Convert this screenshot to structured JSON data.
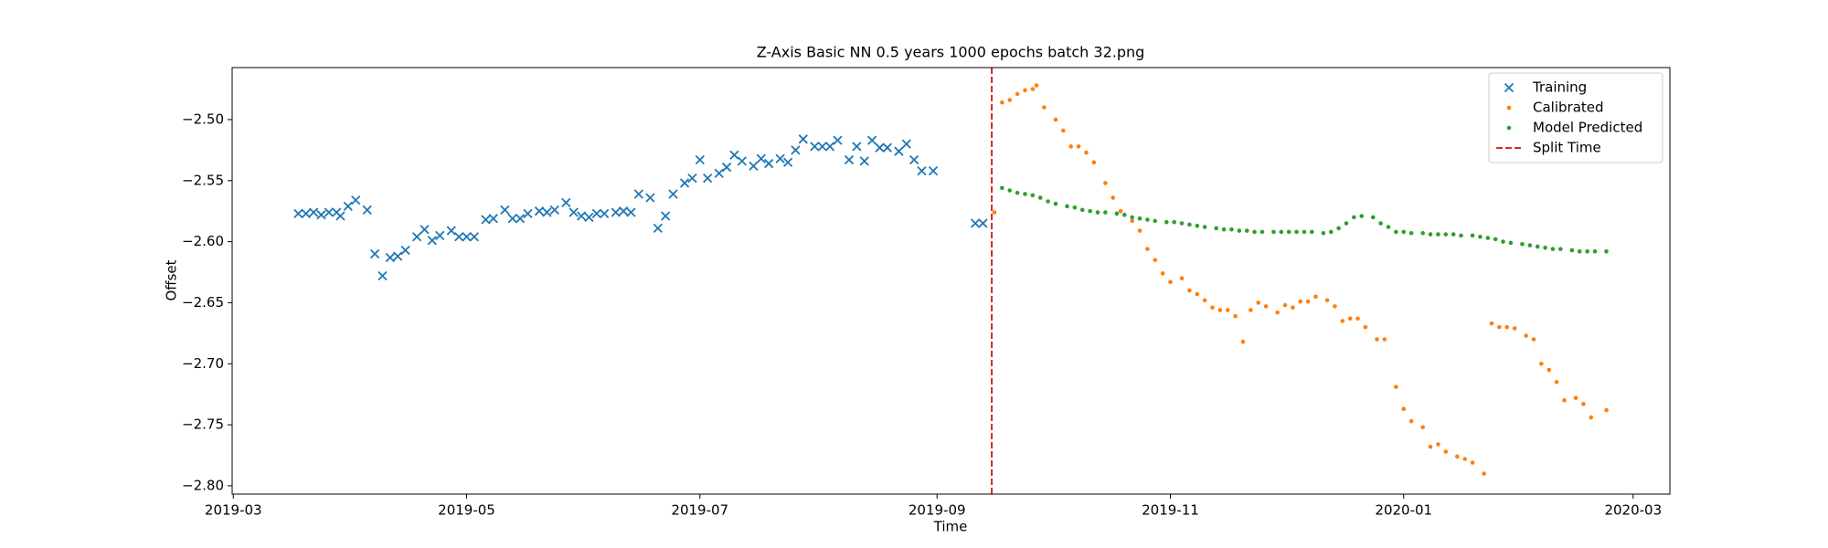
{
  "chart_data": {
    "type": "scatter",
    "title": "Z-Axis Basic NN 0.5 years 1000 epochs batch 32.png",
    "x_label": "Time",
    "y_label": "Offset",
    "xlim": [
      -0.3,
      375.6
    ],
    "ylim": [
      -2.8068,
      -2.4574
    ],
    "xticks": [
      {
        "value": 0,
        "label": "2019-03"
      },
      {
        "value": 61,
        "label": "2019-05"
      },
      {
        "value": 122,
        "label": "2019-07"
      },
      {
        "value": 184,
        "label": "2019-09"
      },
      {
        "value": 245,
        "label": "2019-11"
      },
      {
        "value": 306,
        "label": "2020-01"
      },
      {
        "value": 366,
        "label": "2020-03"
      }
    ],
    "yticks": [
      {
        "value": -2.8,
        "label": "−2.80"
      },
      {
        "value": -2.75,
        "label": "−2.75"
      },
      {
        "value": -2.7,
        "label": "−2.70"
      },
      {
        "value": -2.65,
        "label": "−2.65"
      },
      {
        "value": -2.6,
        "label": "−2.60"
      },
      {
        "value": -2.55,
        "label": "−2.55"
      },
      {
        "value": -2.5,
        "label": "−2.50"
      }
    ],
    "legend": "upper right",
    "series": [
      {
        "name": "Training",
        "color": "#1f77b4",
        "marker": "x",
        "x": [
          17,
          19,
          21,
          23,
          25,
          27,
          28,
          30,
          32,
          35,
          37,
          39,
          41,
          43,
          45,
          48,
          50,
          52,
          54,
          57,
          59,
          61,
          63,
          66,
          68,
          71,
          73,
          75,
          77,
          80,
          82,
          84,
          87,
          89,
          91,
          93,
          95,
          97,
          100,
          102,
          104,
          106,
          109,
          111,
          113,
          115,
          118,
          120,
          122,
          124,
          127,
          129,
          131,
          133,
          136,
          138,
          140,
          143,
          145,
          147,
          149,
          152,
          154,
          156,
          158,
          161,
          163,
          165,
          167,
          169,
          171,
          174,
          176,
          178,
          180,
          183,
          194,
          196
        ],
        "values": [
          -2.577,
          -2.577,
          -2.576,
          -2.578,
          -2.576,
          -2.576,
          -2.579,
          -2.571,
          -2.566,
          -2.574,
          -2.61,
          -2.628,
          -2.613,
          -2.612,
          -2.607,
          -2.596,
          -2.59,
          -2.599,
          -2.595,
          -2.591,
          -2.596,
          -2.596,
          -2.596,
          -2.582,
          -2.581,
          -2.574,
          -2.581,
          -2.581,
          -2.577,
          -2.575,
          -2.576,
          -2.574,
          -2.568,
          -2.576,
          -2.579,
          -2.58,
          -2.577,
          -2.577,
          -2.576,
          -2.575,
          -2.576,
          -2.561,
          -2.564,
          -2.589,
          -2.579,
          -2.561,
          -2.552,
          -2.548,
          -2.533,
          -2.548,
          -2.544,
          -2.539,
          -2.529,
          -2.534,
          -2.538,
          -2.532,
          -2.536,
          -2.532,
          -2.535,
          -2.525,
          -2.516,
          -2.522,
          -2.522,
          -2.522,
          -2.517,
          -2.533,
          -2.522,
          -2.534,
          -2.517,
          -2.523,
          -2.523,
          -2.526,
          -2.52,
          -2.533,
          -2.542,
          -2.542,
          -2.585,
          -2.585
        ]
      },
      {
        "name": "Calibrated",
        "color": "#ff7f0e",
        "marker": "o",
        "x": [
          199,
          201,
          203,
          205,
          207,
          209,
          210,
          212,
          215,
          217,
          219,
          221,
          223,
          225,
          228,
          230,
          232,
          235,
          237,
          239,
          241,
          243,
          245,
          248,
          250,
          252,
          254,
          256,
          258,
          260,
          262,
          264,
          266,
          268,
          270,
          273,
          275,
          277,
          279,
          281,
          283,
          286,
          288,
          290,
          292,
          294,
          296,
          299,
          301,
          304,
          306,
          308,
          311,
          313,
          315,
          317,
          320,
          322,
          324,
          327,
          329,
          331,
          333,
          335,
          338,
          340,
          342,
          344,
          346,
          348,
          351,
          353,
          355,
          359
        ],
        "values": [
          -2.576,
          -2.486,
          -2.484,
          -2.479,
          -2.476,
          -2.475,
          -2.472,
          -2.49,
          -2.5,
          -2.509,
          -2.522,
          -2.522,
          -2.527,
          -2.535,
          -2.552,
          -2.564,
          -2.575,
          -2.583,
          -2.591,
          -2.606,
          -2.615,
          -2.626,
          -2.633,
          -2.63,
          -2.64,
          -2.643,
          -2.648,
          -2.654,
          -2.656,
          -2.656,
          -2.661,
          -2.682,
          -2.656,
          -2.65,
          -2.653,
          -2.658,
          -2.652,
          -2.654,
          -2.649,
          -2.649,
          -2.645,
          -2.648,
          -2.653,
          -2.665,
          -2.663,
          -2.663,
          -2.67,
          -2.68,
          -2.68,
          -2.719,
          -2.737,
          -2.747,
          -2.752,
          -2.768,
          -2.766,
          -2.772,
          -2.776,
          -2.778,
          -2.781,
          -2.79,
          -2.667,
          -2.67,
          -2.67,
          -2.671,
          -2.677,
          -2.68,
          -2.7,
          -2.705,
          -2.715,
          -2.73,
          -2.728,
          -2.733,
          -2.744,
          -2.738
        ]
      },
      {
        "name": "Model Predicted",
        "color": "#2ca02c",
        "marker": "o",
        "x": [
          201,
          203,
          205,
          207,
          209,
          211,
          213,
          215,
          218,
          220,
          222,
          224,
          226,
          228,
          231,
          233,
          235,
          237,
          239,
          241,
          244,
          246,
          248,
          250,
          252,
          254,
          257,
          259,
          261,
          263,
          265,
          267,
          269,
          272,
          274,
          276,
          278,
          280,
          282,
          285,
          287,
          289,
          291,
          293,
          295,
          298,
          300,
          302,
          304,
          306,
          308,
          311,
          313,
          315,
          317,
          319,
          321,
          324,
          326,
          328,
          330,
          332,
          334,
          337,
          339,
          341,
          343,
          345,
          347,
          350,
          352,
          354,
          356,
          359
        ],
        "values": [
          -2.556,
          -2.558,
          -2.56,
          -2.561,
          -2.562,
          -2.564,
          -2.567,
          -2.569,
          -2.571,
          -2.572,
          -2.574,
          -2.575,
          -2.576,
          -2.576,
          -2.577,
          -2.578,
          -2.58,
          -2.581,
          -2.582,
          -2.583,
          -2.584,
          -2.584,
          -2.585,
          -2.586,
          -2.587,
          -2.588,
          -2.589,
          -2.59,
          -2.59,
          -2.591,
          -2.591,
          -2.592,
          -2.592,
          -2.592,
          -2.592,
          -2.592,
          -2.592,
          -2.592,
          -2.592,
          -2.593,
          -2.592,
          -2.589,
          -2.585,
          -2.58,
          -2.579,
          -2.58,
          -2.585,
          -2.588,
          -2.592,
          -2.592,
          -2.593,
          -2.593,
          -2.594,
          -2.594,
          -2.594,
          -2.594,
          -2.595,
          -2.595,
          -2.596,
          -2.597,
          -2.598,
          -2.6,
          -2.601,
          -2.602,
          -2.603,
          -2.604,
          -2.605,
          -2.606,
          -2.606,
          -2.607,
          -2.608,
          -2.608,
          -2.608,
          -2.608
        ]
      }
    ],
    "split_time": {
      "name": "Split Time",
      "x": 198.3,
      "color": "#d62728"
    }
  }
}
